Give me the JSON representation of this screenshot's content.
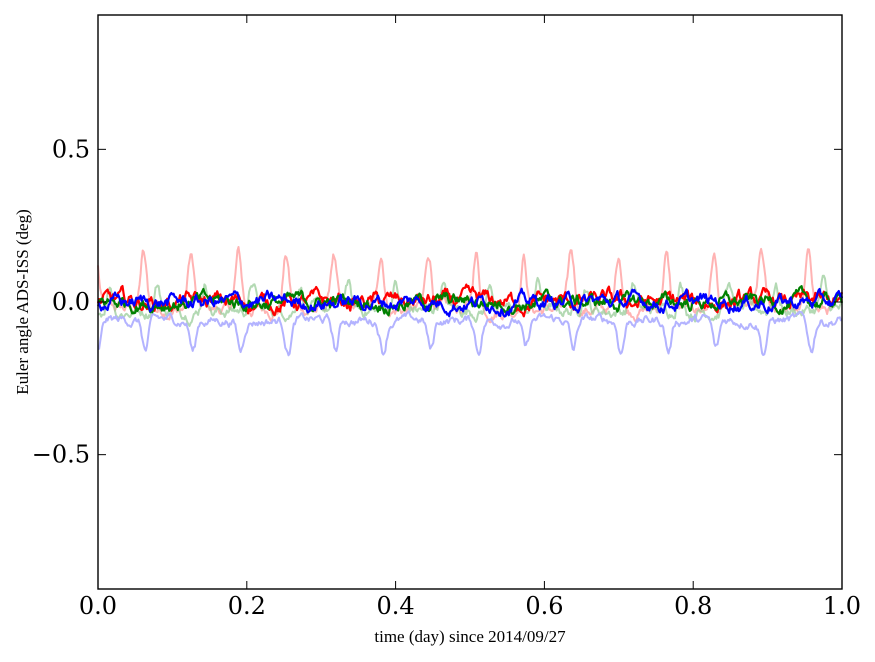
{
  "chart_data": {
    "type": "line",
    "title": "",
    "xlabel": "time (day) since 2014/09/27",
    "ylabel": "Euler angle ADS-ISS (deg)",
    "xlim": [
      0.0,
      1.0
    ],
    "ylim": [
      -0.94,
      0.94
    ],
    "grid": false,
    "legend": "none",
    "x_ticks": [
      {
        "value": 0.0,
        "label": "0.0"
      },
      {
        "value": 0.2,
        "label": "0.2"
      },
      {
        "value": 0.4,
        "label": "0.4"
      },
      {
        "value": 0.6,
        "label": "0.6"
      },
      {
        "value": 0.8,
        "label": "0.8"
      },
      {
        "value": 1.0,
        "label": "1.0"
      }
    ],
    "y_ticks": [
      {
        "value": -0.5,
        "label": "−0.5"
      },
      {
        "value": 0.0,
        "label": "0.0"
      },
      {
        "value": 0.5,
        "label": "0.5"
      }
    ],
    "orbit_period_day": 0.0639,
    "series": [
      {
        "color": "#ffb3b3",
        "opacity": 1.0,
        "faded": true,
        "mean": 0.03,
        "periodic_amplitude": 0.18,
        "peak_phase_day": 0.061,
        "noise_sd": 0.02,
        "range": [
          -0.09,
          0.26
        ]
      },
      {
        "color": "#99cc99",
        "opacity": 0.75,
        "faded": true,
        "mean": 0.0,
        "periodic_amplitude": 0.09,
        "peak_phase_day": 0.08,
        "noise_sd": 0.02,
        "range": [
          -0.13,
          0.12
        ]
      },
      {
        "color": "#b3b3ff",
        "opacity": 1.0,
        "faded": true,
        "mean": -0.09,
        "periodic_amplitude": 0.1,
        "peak_phase_day": 0.0,
        "noise_sd": 0.015,
        "range": [
          -0.24,
          -0.03
        ]
      },
      {
        "color": "#ff0000",
        "opacity": 1.0,
        "faded": false,
        "mean": 0.0,
        "periodic_amplitude": 0.0,
        "peak_phase_day": 0.0,
        "noise_sd": 0.025,
        "range": [
          -0.06,
          0.07
        ]
      },
      {
        "color": "#008000",
        "opacity": 1.0,
        "faded": false,
        "mean": 0.0,
        "periodic_amplitude": 0.0,
        "peak_phase_day": 0.0,
        "noise_sd": 0.022,
        "range": [
          -0.05,
          0.08
        ]
      },
      {
        "color": "#0000ff",
        "opacity": 1.0,
        "faded": false,
        "mean": 0.0,
        "periodic_amplitude": 0.0,
        "peak_phase_day": 0.0,
        "noise_sd": 0.022,
        "range": [
          -0.06,
          0.06
        ]
      }
    ]
  }
}
